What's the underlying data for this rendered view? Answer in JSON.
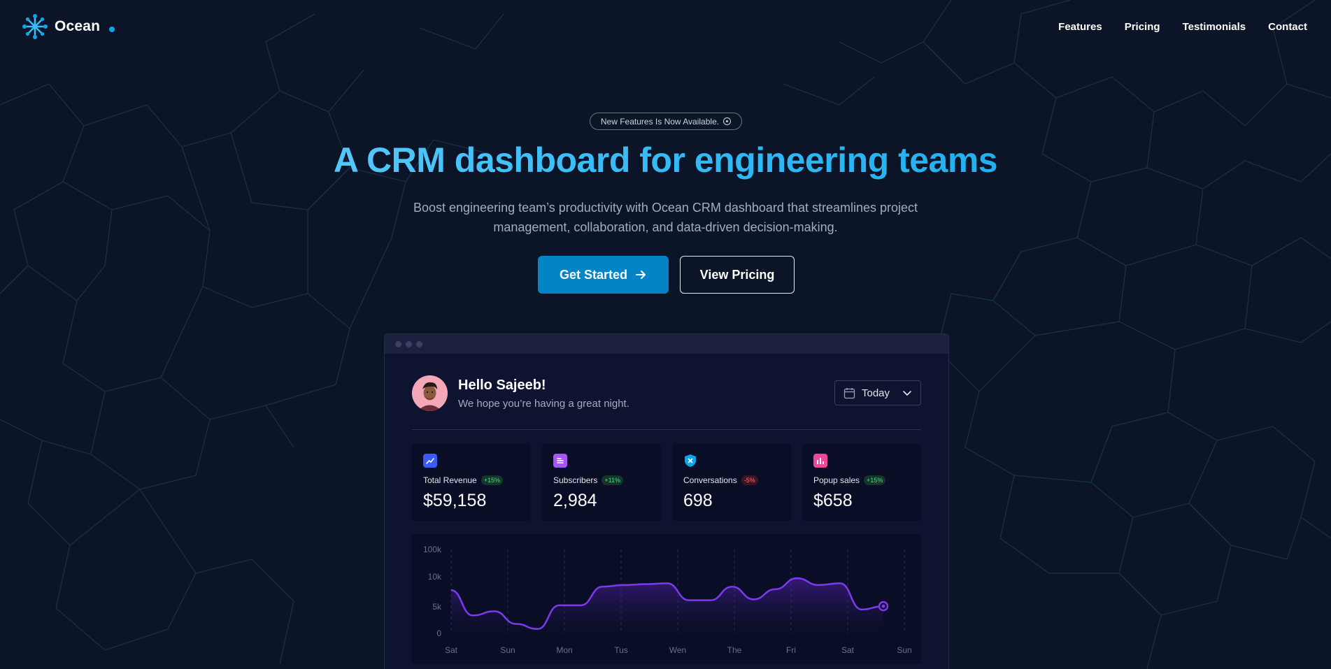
{
  "brand": {
    "name": "Ocean",
    "accent": "#0ea5e9",
    "logo_icon": "snowflake-icon"
  },
  "nav": {
    "links": [
      "Features",
      "Pricing",
      "Testimonials",
      "Contact"
    ]
  },
  "hero": {
    "pill": "New Features Is Now Available.",
    "headline": "A CRM dashboard for engineering teams",
    "subline": "Boost engineering team’s productivity with Ocean CRM dashboard that streamlines project management, collaboration, and data-driven decision-making.",
    "primary_cta": "Get Started",
    "secondary_cta": "View Pricing"
  },
  "dashboard": {
    "greeting": "Hello Sajeeb!",
    "subgreeting": "We hope you’re having a great night.",
    "range": "Today",
    "stats": [
      {
        "label": "Total Revenue",
        "change": "+15%",
        "trend": "up",
        "value": "$59,158",
        "icon": "chart-trend-icon",
        "color": "#3b5bf6"
      },
      {
        "label": "Subscribers",
        "change": "+11%",
        "trend": "up",
        "value": "2,984",
        "icon": "document-icon",
        "color": "#a855f7"
      },
      {
        "label": "Conversations",
        "change": "-5%",
        "trend": "down",
        "value": "698",
        "icon": "shield-icon",
        "color": "#0ea5e9"
      },
      {
        "label": "Popup sales",
        "change": "+15%",
        "trend": "up",
        "value": "$658",
        "icon": "bar-chart-icon",
        "color": "#ec4899"
      }
    ]
  },
  "chart_data": {
    "type": "line",
    "y_ticks": [
      "100k",
      "10k",
      "5k",
      "0"
    ],
    "x_ticks": [
      "Sat",
      "Sun",
      "Mon",
      "Tus",
      "Wen",
      "The",
      "Fri",
      "Sat",
      "Sun"
    ],
    "values": [
      52,
      22,
      27,
      12,
      6,
      34,
      34,
      56,
      58,
      59,
      60,
      40,
      40,
      56,
      41,
      53,
      66,
      58,
      60,
      29,
      33
    ],
    "line_color": "#7c3aed"
  }
}
